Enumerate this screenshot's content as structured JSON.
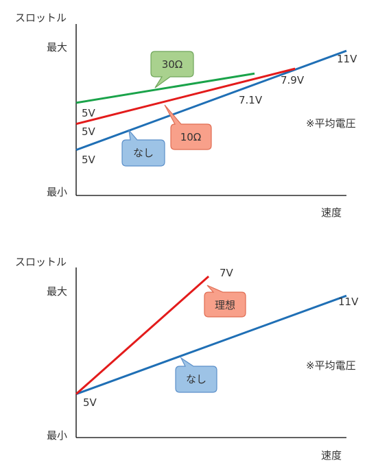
{
  "colors": {
    "axis": "#000000",
    "blue": "#1f6fb5",
    "red": "#e31b1b",
    "green": "#1aa34a",
    "callout_blue_fill": "#9dc3e6",
    "callout_blue_stroke": "#5b8fc9",
    "callout_red_fill": "#f8a08a",
    "callout_red_stroke": "#e06c52",
    "callout_green_fill": "#a9d18e",
    "callout_green_stroke": "#6fa55a"
  },
  "chart_data": [
    {
      "type": "line",
      "title": "",
      "ylabel": "スロットル",
      "xlabel": "速度",
      "ytick_top": "最大",
      "ytick_bottom": "最小",
      "note": "※平均電圧",
      "xlim": [
        0,
        100
      ],
      "ylim": [
        0,
        100
      ],
      "series": [
        {
          "key": "none",
          "color": "#1f6fb5",
          "points": [
            [
              0,
              28
            ],
            [
              100,
              89
            ]
          ],
          "start_label": "5V",
          "end_label": "11V"
        },
        {
          "key": "r10",
          "color": "#e31b1b",
          "points": [
            [
              0,
              44
            ],
            [
              81,
              78
            ]
          ],
          "start_label": "5V",
          "end_label": "7.1V"
        },
        {
          "key": "r30",
          "color": "#1aa34a",
          "points": [
            [
              0,
              57
            ],
            [
              66,
              75
            ]
          ],
          "start_label": "5V",
          "end_label": "7.9V"
        }
      ],
      "callouts": [
        {
          "text": "30Ω",
          "series": "r30"
        },
        {
          "text": "10Ω",
          "series": "r10"
        },
        {
          "text": "なし",
          "series": "none"
        }
      ]
    },
    {
      "type": "line",
      "title": "",
      "ylabel": "スロットル",
      "xlabel": "速度",
      "ytick_top": "最大",
      "ytick_bottom": "最小",
      "note": "※平均電圧",
      "xlim": [
        0,
        100
      ],
      "ylim": [
        0,
        100
      ],
      "series": [
        {
          "key": "none",
          "color": "#1f6fb5",
          "points": [
            [
              0,
              27
            ],
            [
              100,
              88
            ]
          ],
          "start_label": "5V",
          "end_label": "11V"
        },
        {
          "key": "ideal",
          "color": "#e31b1b",
          "points": [
            [
              0,
              27
            ],
            [
              49,
              100
            ]
          ],
          "start_label": "",
          "end_label": "7V"
        }
      ],
      "callouts": [
        {
          "text": "理想",
          "series": "ideal"
        },
        {
          "text": "なし",
          "series": "none"
        }
      ]
    }
  ]
}
